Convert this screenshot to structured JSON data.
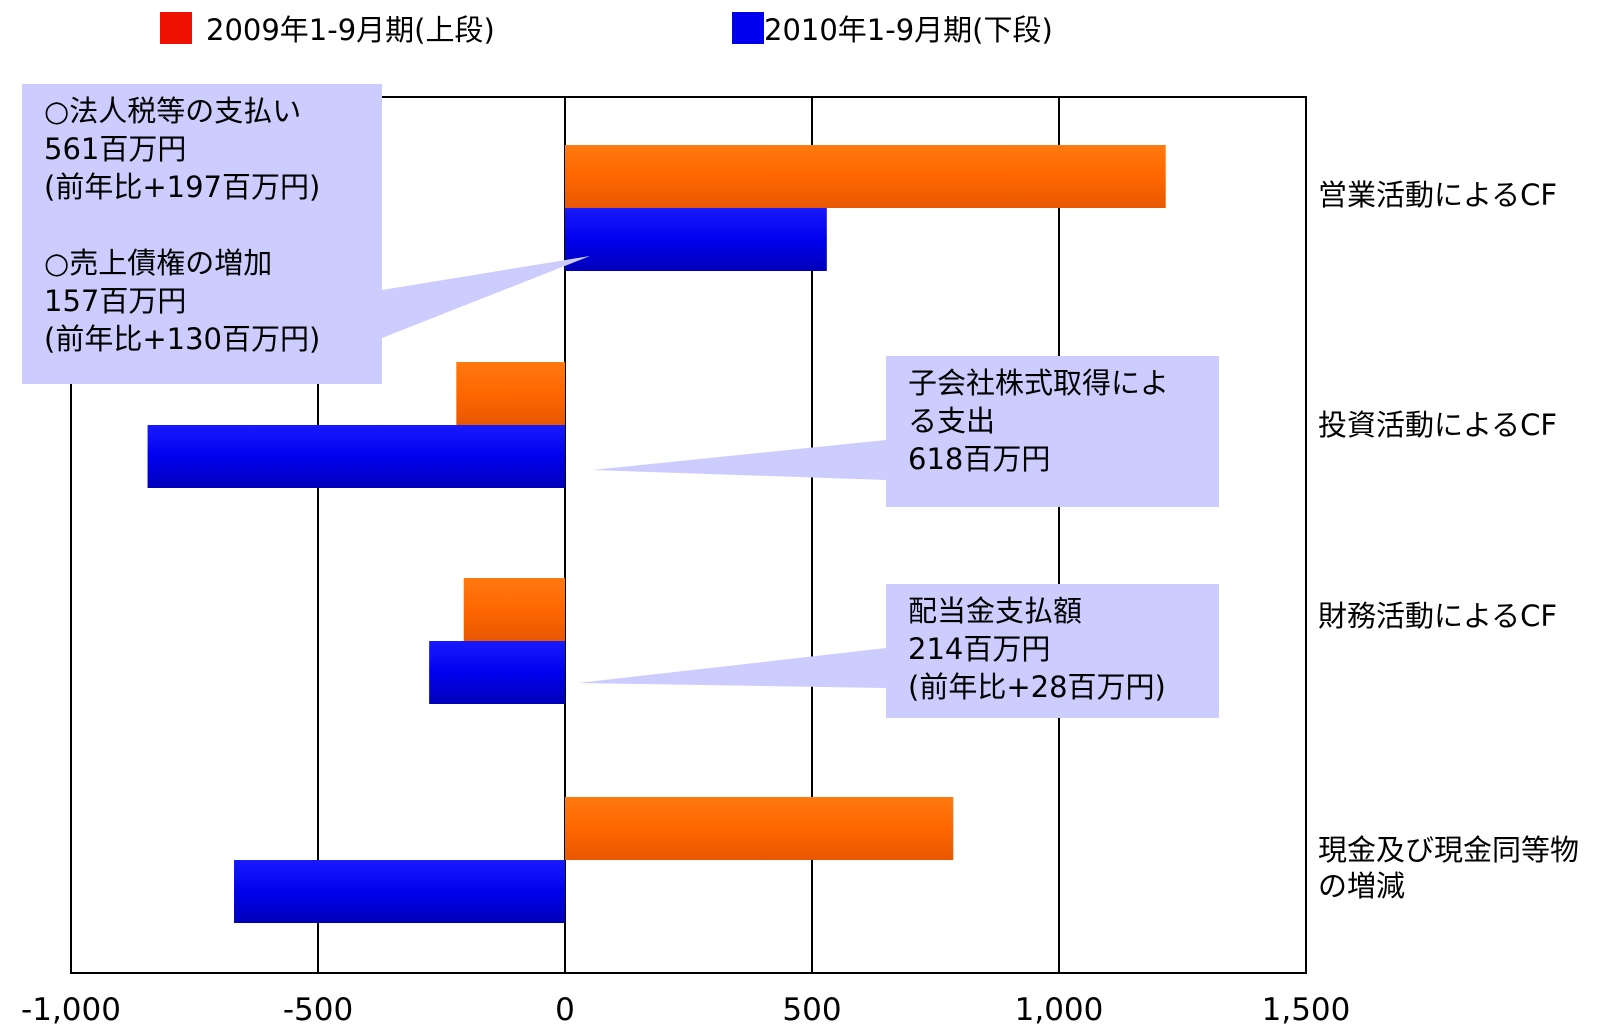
{
  "chart_data": {
    "type": "bar",
    "orientation": "horizontal",
    "categories": [
      "営業活動によるCF",
      "投資活動によるCF",
      "財務活動によるCF",
      "現金及び現金同等物の増減"
    ],
    "series": [
      {
        "name": "2009年1-9月期(上段)",
        "color": "#ff6600",
        "values": [
          1216,
          -220,
          -205,
          786
        ]
      },
      {
        "name": "2010年1-9月期(下段)",
        "color": "#0000ee",
        "values": [
          530,
          -845,
          -275,
          -670
        ]
      }
    ],
    "xlim": [
      -1000,
      1500
    ],
    "xticks": [
      -1000,
      -500,
      0,
      500,
      1000,
      1500
    ],
    "xtick_labels": [
      "-1,000",
      "-500",
      "0",
      "500",
      "1,000",
      "1,500"
    ],
    "grid": "vertical",
    "legend_position": "top"
  },
  "legend": {
    "items": [
      {
        "label": "2009年1-9月期(上段)",
        "swatch_color": "#ee1100"
      },
      {
        "label": "2010年1-9月期(下段)",
        "swatch_color": "#0000ee"
      }
    ]
  },
  "category_labels": [
    "営業活動によるCF",
    "投資活動によるCF",
    "財務活動によるCF",
    "現金及び現金同等物\nの増減"
  ],
  "callouts": [
    {
      "text": "○法人税等の支払い\n561百万円\n(前年比+197百万円)\n\n○売上債権の増加\n157百万円\n(前年比+130百万円)"
    },
    {
      "text": "子会社株式取得によ\nる支出\n618百万円"
    },
    {
      "text": "配当金支払額\n214百万円\n(前年比+28百万円)"
    }
  ]
}
